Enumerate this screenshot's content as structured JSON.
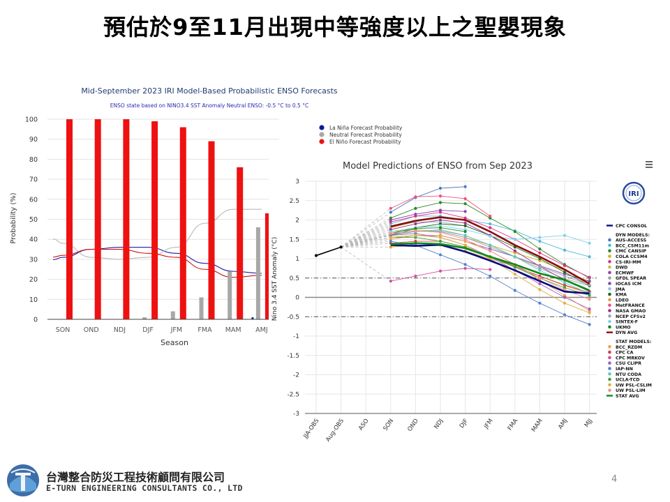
{
  "slide": {
    "title": "預估於9至11月出現中等強度以上之聖嬰現象",
    "company_zh": "台灣整合防災工程技術顧問有限公司",
    "company_en": "E-TURN ENGINEERING CONSULTANTS CO., LTD",
    "page_number": "4"
  },
  "chart_data": [
    {
      "type": "bar",
      "title": "Mid-September 2023 IRI Model-Based Probabilistic ENSO Forecasts",
      "subtitle": "ENSO state based on NINO3.4 SST Anomaly Neutral ENSO: -0.5 °C to 0.5 °C",
      "xlabel": "Season",
      "ylabel": "Probability (%)",
      "ylim": [
        0,
        100
      ],
      "yticks": [
        0,
        10,
        20,
        30,
        40,
        50,
        60,
        70,
        80,
        90,
        100
      ],
      "categories": [
        "SON",
        "OND",
        "NDJ",
        "DJF",
        "JFM",
        "FMA",
        "MAM",
        "AMJ"
      ],
      "series": [
        {
          "name": "La Niña Forecast Probability",
          "color": "#0a1a9c",
          "values": [
            0,
            0,
            0,
            0,
            0,
            0,
            0,
            1
          ]
        },
        {
          "name": "Neutral Forecast Probability",
          "color": "#a8a8a8",
          "values": [
            0,
            0,
            0,
            1,
            4,
            11,
            24,
            46
          ]
        },
        {
          "name": "El Niño Forecast Probability",
          "color": "#ee1111",
          "values": [
            100,
            100,
            100,
            99,
            96,
            89,
            76,
            53
          ]
        }
      ],
      "climatology": [
        {
          "name": "La Niña climatology",
          "color": "#1a1aa0",
          "values": [
            31,
            35,
            36,
            36,
            33,
            28,
            24,
            23
          ]
        },
        {
          "name": "Neutral climatology",
          "color": "#b8b8b8",
          "values": [
            38,
            31,
            30,
            31,
            36,
            48,
            55,
            55
          ]
        },
        {
          "name": "El Niño climatology",
          "color": "#cc1111",
          "values": [
            32,
            35,
            35,
            33,
            31,
            25,
            21,
            22
          ]
        }
      ],
      "legend_position": "top-right"
    },
    {
      "type": "line",
      "title": "Model Predictions of ENSO from Sep 2023",
      "ylabel": "Nino 3.4 SST Anomaly (°C)",
      "ylim": [
        -3,
        3
      ],
      "yticks": [
        3,
        2.5,
        2,
        1.5,
        1,
        0.5,
        0,
        -0.5,
        -1,
        -1.5,
        -2,
        -2.5,
        -3
      ],
      "categories": [
        "JJA-OBS",
        "Aug-OBS",
        "ASO",
        "SON",
        "OND",
        "NDJ",
        "DJF",
        "JFM",
        "FMA",
        "MAM",
        "AMJ",
        "MJJ"
      ],
      "menu_icon": "hamburger-menu-icon",
      "logo_text": "IRI",
      "observed": {
        "name": "CPC CONSOL",
        "color": "#000000",
        "values": [
          1.08,
          1.3,
          null,
          null,
          null,
          null,
          null,
          null,
          null,
          null,
          null,
          null
        ]
      },
      "highlight_series": [
        {
          "name": "CPC CONSOL",
          "color": "#0a0a80",
          "values": [
            null,
            null,
            null,
            1.35,
            1.33,
            1.36,
            1.18,
            0.95,
            0.7,
            0.42,
            0.15,
            0.1
          ]
        },
        {
          "name": "DYN AVG",
          "color": "#8b0d0d",
          "values": [
            null,
            null,
            null,
            1.83,
            1.98,
            2.07,
            2.0,
            1.7,
            1.35,
            1.05,
            0.72,
            0.35
          ]
        },
        {
          "name": "STAT AVG",
          "color": "#0e8a1a",
          "values": [
            null,
            null,
            null,
            1.37,
            1.4,
            1.38,
            1.27,
            1.05,
            0.85,
            0.62,
            0.45,
            0.18
          ]
        }
      ],
      "dyn_models": [
        {
          "name": "AUS-ACCESS",
          "color": "#4a7ac0",
          "values": [
            null,
            null,
            null,
            2.2,
            2.58,
            2.82,
            2.86,
            null,
            null,
            null,
            null,
            null
          ]
        },
        {
          "name": "BCC_CSM11m",
          "color": "#4fb8d8",
          "values": [
            null,
            null,
            null,
            1.9,
            2.1,
            2.1,
            2.0,
            1.9,
            1.72,
            1.45,
            1.22,
            1.05
          ]
        },
        {
          "name": "CMC CANSIP",
          "color": "#2a8a2a",
          "values": [
            null,
            null,
            null,
            2.05,
            2.3,
            2.45,
            2.42,
            2.05,
            1.7,
            1.25,
            0.85,
            0.5
          ]
        },
        {
          "name": "COLA CCSM4",
          "color": "#d8b020",
          "values": [
            null,
            null,
            null,
            1.7,
            1.75,
            1.7,
            1.55,
            1.35,
            1.15,
            0.95,
            0.7,
            0.4
          ]
        },
        {
          "name": "CS-IRI-MM",
          "color": "#e03080",
          "values": [
            null,
            null,
            null,
            1.95,
            2.1,
            2.2,
            2.05,
            1.8,
            1.5,
            1.15,
            0.82,
            0.52
          ]
        },
        {
          "name": "DWD",
          "color": "#c8c040",
          "values": [
            null,
            null,
            null,
            1.8,
            1.95,
            1.95,
            1.85,
            null,
            null,
            null,
            null,
            null
          ]
        },
        {
          "name": "ECMWF",
          "color": "#9040b0",
          "values": [
            null,
            null,
            null,
            2.0,
            2.15,
            2.25,
            2.22,
            null,
            null,
            null,
            null,
            null
          ]
        },
        {
          "name": "GFDL SPEAR",
          "color": "#a0a0a0",
          "values": [
            null,
            null,
            null,
            1.6,
            1.7,
            1.75,
            1.6,
            1.35,
            1.05,
            0.75,
            0.48,
            0.3
          ]
        },
        {
          "name": "IOCAS ICM",
          "color": "#7a50a0",
          "values": [
            null,
            null,
            null,
            1.55,
            1.6,
            1.6,
            1.45,
            1.25,
            1.05,
            0.82,
            0.6,
            0.42
          ]
        },
        {
          "name": "JMA",
          "color": "#90c0e0",
          "values": [
            null,
            null,
            null,
            1.85,
            1.95,
            1.95,
            1.85,
            1.6,
            null,
            null,
            null,
            null
          ]
        },
        {
          "name": "KMA",
          "color": "#1a6a1a",
          "values": [
            null,
            null,
            null,
            1.65,
            1.8,
            1.9,
            1.85,
            1.6,
            1.3,
            1.0,
            0.65,
            0.3
          ]
        },
        {
          "name": "LDEO",
          "color": "#e0a040",
          "values": [
            null,
            null,
            null,
            1.3,
            1.35,
            1.35,
            1.2,
            1.0,
            0.8,
            0.55,
            0.3,
            0.1
          ]
        },
        {
          "name": "MetFRANCE",
          "color": "#f05080",
          "values": [
            null,
            null,
            null,
            2.3,
            2.6,
            2.62,
            2.55,
            2.1,
            null,
            null,
            null,
            null
          ]
        },
        {
          "name": "NASA GMAO",
          "color": "#a0308a",
          "values": [
            null,
            null,
            null,
            1.75,
            1.9,
            2.0,
            1.92,
            1.6,
            1.2,
            0.8,
            0.45,
            0.15
          ]
        },
        {
          "name": "NCEP CFSv2",
          "color": "#a0a0c0",
          "values": [
            null,
            null,
            null,
            1.62,
            1.72,
            1.7,
            1.55,
            1.3,
            1.05,
            0.8,
            0.55,
            0.32
          ]
        },
        {
          "name": "SINTEX-F",
          "color": "#80d0f0",
          "values": [
            null,
            null,
            null,
            1.7,
            1.8,
            1.85,
            1.75,
            1.58,
            1.5,
            1.55,
            1.6,
            1.4
          ]
        },
        {
          "name": "UKMO",
          "color": "#1a8a1a",
          "values": [
            null,
            null,
            null,
            1.6,
            1.78,
            1.8,
            1.7,
            null,
            null,
            null,
            null,
            null
          ]
        }
      ],
      "stat_models": [
        {
          "name": "BCC_RZDM",
          "color": "#f0a050",
          "values": [
            null,
            null,
            null,
            1.5,
            1.6,
            1.6,
            1.45,
            1.2,
            0.85,
            0.45,
            0.05,
            -0.35
          ]
        },
        {
          "name": "CPC CA",
          "color": "#d04040",
          "values": [
            null,
            null,
            null,
            1.4,
            1.45,
            1.45,
            1.3,
            1.05,
            0.8,
            0.55,
            0.32,
            0.12
          ]
        },
        {
          "name": "CPC MRKOV",
          "color": "#d050a0",
          "values": [
            null,
            null,
            null,
            0.42,
            0.55,
            0.68,
            0.75,
            0.72,
            null,
            null,
            null,
            null
          ]
        },
        {
          "name": "CSU CLIPR",
          "color": "#a060c0",
          "values": [
            null,
            null,
            null,
            1.6,
            1.65,
            1.55,
            1.35,
            1.05,
            0.7,
            0.35,
            0.0,
            -0.3
          ]
        },
        {
          "name": "IAP-NN",
          "color": "#5080d0",
          "values": [
            null,
            null,
            null,
            1.45,
            1.35,
            1.1,
            0.85,
            0.55,
            0.18,
            -0.15,
            -0.45,
            -0.7
          ]
        },
        {
          "name": "NTU CODA",
          "color": "#60c8c0",
          "values": [
            null,
            null,
            null,
            1.65,
            1.7,
            1.72,
            1.6,
            1.35,
            1.05,
            0.7,
            0.38,
            0.1
          ]
        },
        {
          "name": "UCLA-TCD",
          "color": "#40a040",
          "values": [
            null,
            null,
            null,
            1.55,
            1.55,
            1.45,
            1.3,
            1.05,
            0.78,
            0.5,
            0.25,
            0.05
          ]
        },
        {
          "name": "UW PSL-CSLIM",
          "color": "#e0b040",
          "values": [
            null,
            null,
            null,
            1.55,
            1.6,
            1.55,
            1.35,
            1.0,
            0.6,
            0.2,
            -0.15,
            -0.4
          ]
        },
        {
          "name": "UW PSL-LIM",
          "color": "#f09090",
          "values": [
            null,
            null,
            null,
            1.65,
            1.72,
            1.68,
            1.5,
            1.2,
            0.85,
            0.5,
            0.2,
            -0.05
          ]
        }
      ],
      "legend_labels": {
        "top": "CPC CONSOL",
        "dyn_header": "DYN MODELS:",
        "dyn_avg": "DYN AVG",
        "stat_header": "STAT MODELS:",
        "stat_avg": "STAT AVG"
      },
      "reference_lines": [
        0.5,
        -0.5
      ]
    }
  ]
}
